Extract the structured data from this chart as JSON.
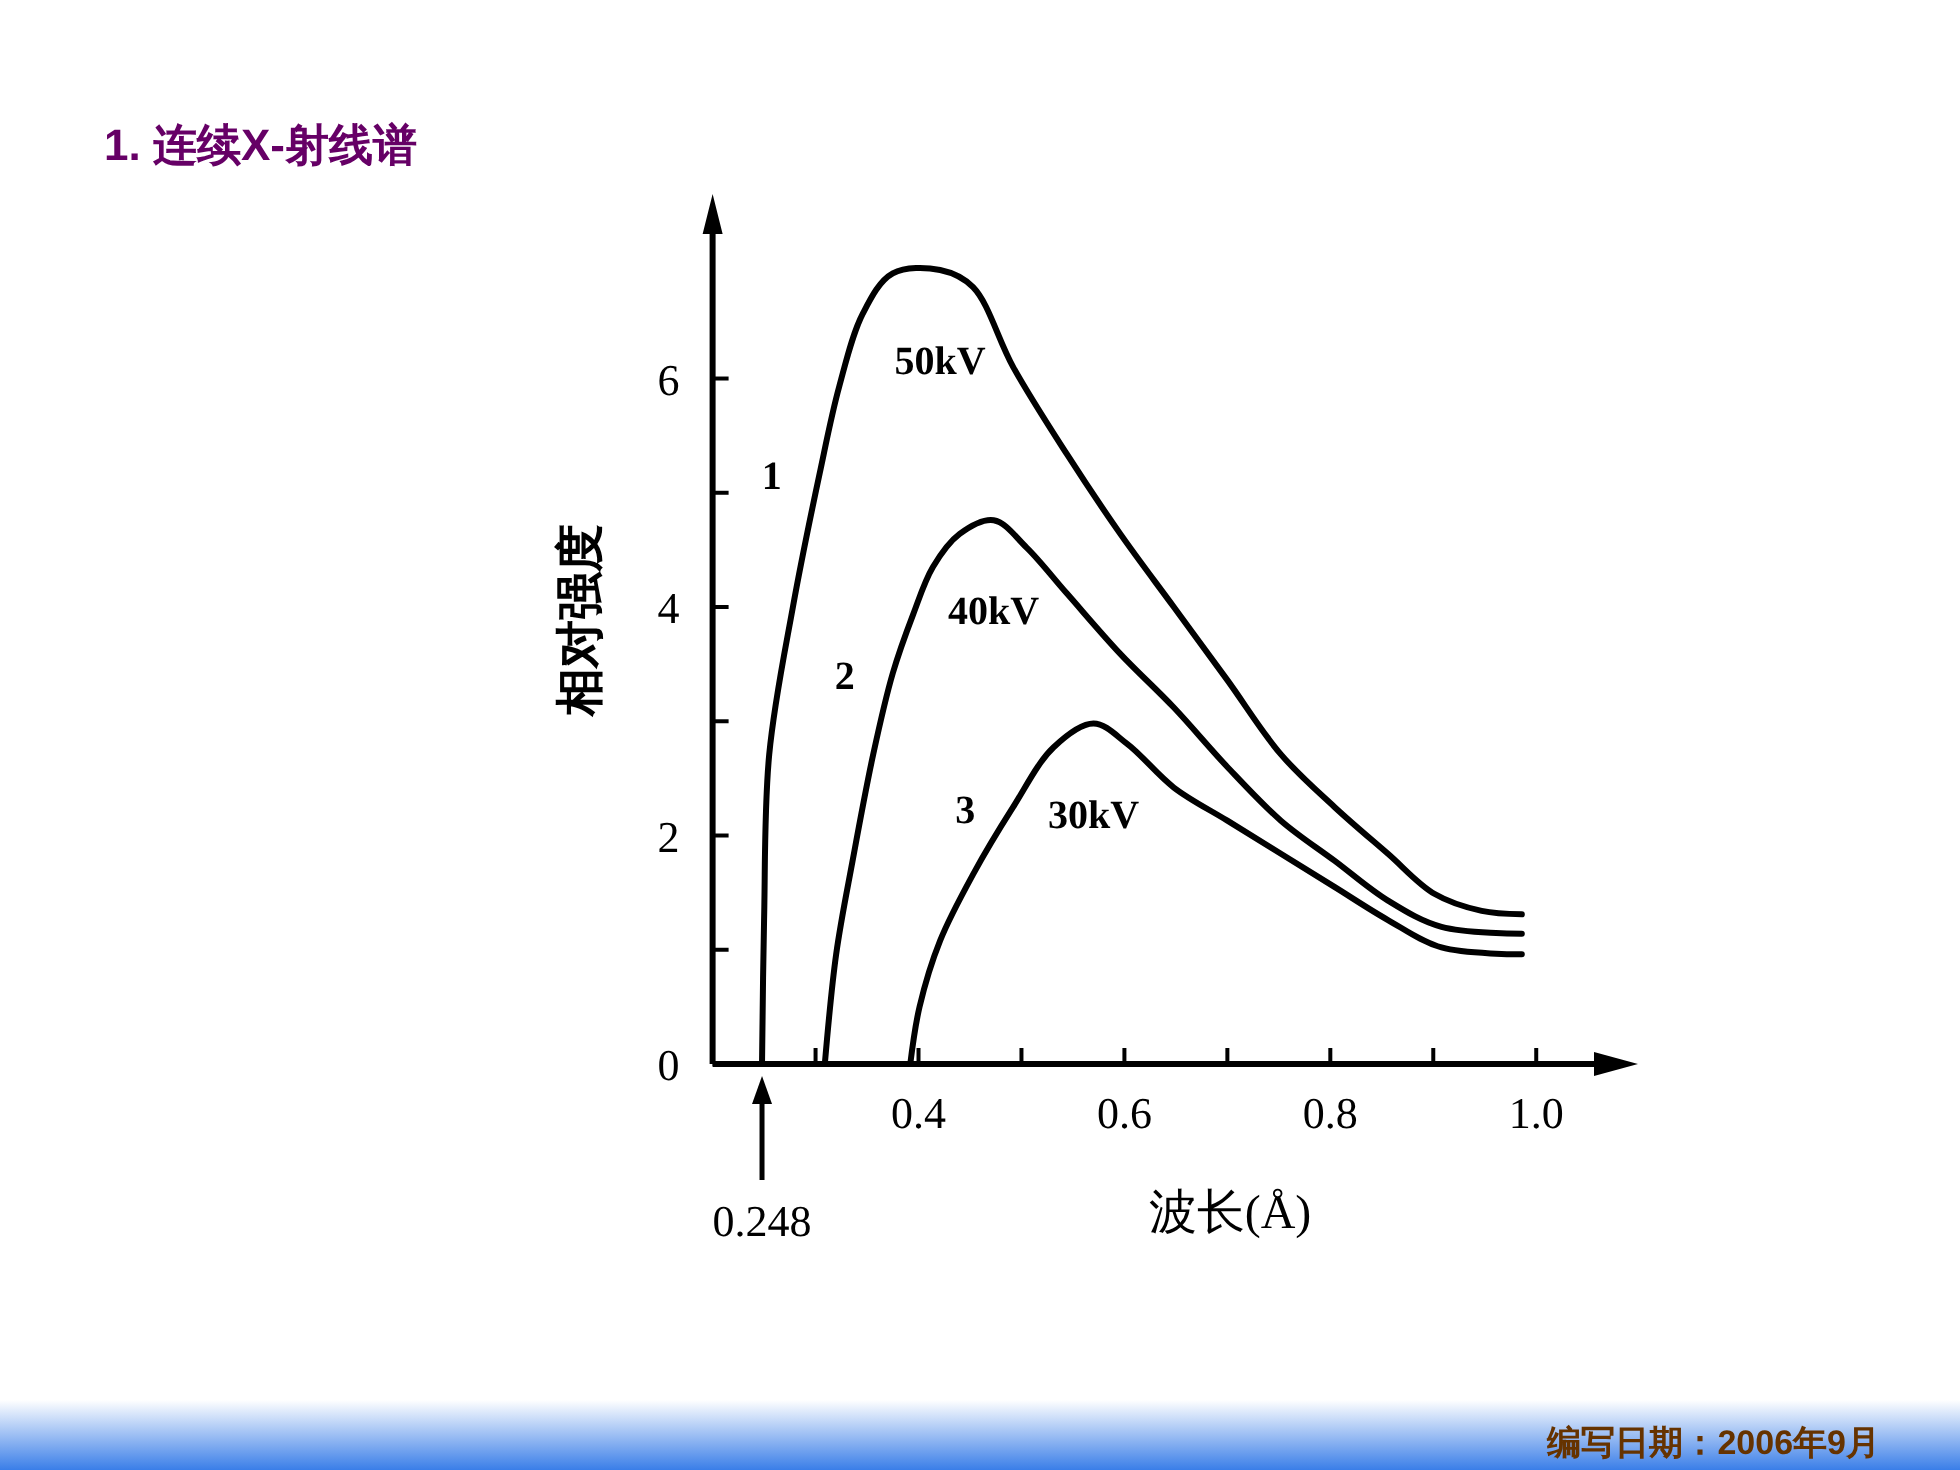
{
  "chart_data": {
    "type": "line",
    "title": "1. 连续X-射线谱",
    "xlabel": "波长(Å)",
    "ylabel": "相对强度",
    "xlim": [
      0.2,
      1.06
    ],
    "ylim": [
      0,
      7.3
    ],
    "xticks": [
      {
        "value": 0.3,
        "label": null
      },
      {
        "value": 0.4,
        "label": "0.4"
      },
      {
        "value": 0.5,
        "label": null
      },
      {
        "value": 0.6,
        "label": "0.6"
      },
      {
        "value": 0.7,
        "label": null
      },
      {
        "value": 0.8,
        "label": "0.8"
      },
      {
        "value": 0.9,
        "label": null
      },
      {
        "value": 1.0,
        "label": "1.0"
      }
    ],
    "yticks": [
      0,
      {
        "value": 1,
        "label": null
      },
      2,
      {
        "value": 3,
        "label": null
      },
      4,
      {
        "value": 5,
        "label": null
      },
      6
    ],
    "grid": false,
    "marker": "none",
    "line_style": "solid",
    "series": [
      {
        "name": "50kV",
        "color": "#000000",
        "x": [
          0.248,
          0.25,
          0.255,
          0.278,
          0.304,
          0.323,
          0.346,
          0.375,
          0.421,
          0.453,
          0.492,
          0.544,
          0.596,
          0.648,
          0.7,
          0.752,
          0.804,
          0.856,
          0.901,
          0.947,
          0.986
        ],
        "values": [
          0,
          1.26,
          2.71,
          4.0,
          5.17,
          5.93,
          6.57,
          6.92,
          6.95,
          6.8,
          6.1,
          5.34,
          4.64,
          4.0,
          3.36,
          2.71,
          2.25,
          1.84,
          1.49,
          1.34,
          1.31
        ]
      },
      {
        "name": "40kV",
        "color": "#000000",
        "x": [
          0.309,
          0.32,
          0.336,
          0.356,
          0.375,
          0.395,
          0.414,
          0.44,
          0.473,
          0.505,
          0.544,
          0.596,
          0.648,
          0.7,
          0.752,
          0.804,
          0.856,
          0.908,
          0.986
        ],
        "values": [
          0,
          0.96,
          1.78,
          2.71,
          3.42,
          3.94,
          4.35,
          4.64,
          4.76,
          4.52,
          4.12,
          3.59,
          3.12,
          2.6,
          2.13,
          1.78,
          1.43,
          1.2,
          1.14
        ]
      },
      {
        "name": "30kV",
        "color": "#000000",
        "x": [
          0.392,
          0.401,
          0.421,
          0.453,
          0.492,
          0.531,
          0.57,
          0.603,
          0.648,
          0.7,
          0.752,
          0.804,
          0.856,
          0.908,
          0.986
        ],
        "values": [
          0,
          0.5,
          1.08,
          1.66,
          2.25,
          2.77,
          2.98,
          2.8,
          2.42,
          2.13,
          1.84,
          1.55,
          1.26,
          1.02,
          0.96
        ]
      }
    ],
    "annotations": [
      "1",
      "2",
      "3",
      {
        "text": "0.248",
        "x": 0.248,
        "y": 0
      },
      "编写日期：2006年9月"
    ]
  }
}
